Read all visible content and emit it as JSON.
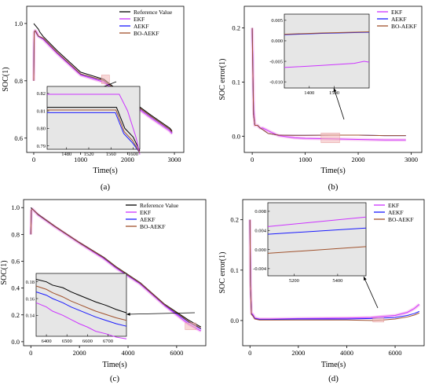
{
  "chart_data": [
    {
      "type": "line",
      "panel_label": "(a)",
      "xlabel": "Time(s)",
      "ylabel": "SOC(1)",
      "xlim": [
        -150,
        3200
      ],
      "ylim": [
        0.55,
        1.06
      ],
      "xticks": [
        0,
        1000,
        2000,
        3000
      ],
      "yticks": [
        0.6,
        0.8,
        1.0
      ],
      "ytick_labels": [
        "0.6",
        "0.8",
        "1.0"
      ],
      "legend_position": "top-right",
      "series": [
        {
          "name": "Reference Value",
          "color": "#000000",
          "x": [
            0,
            50,
            100,
            130,
            200,
            500,
            1000,
            1500,
            2000,
            2500,
            2900,
            2950
          ],
          "y": [
            1.0,
            0.99,
            0.98,
            0.97,
            0.955,
            0.905,
            0.83,
            0.805,
            0.74,
            0.68,
            0.635,
            0.625
          ]
        },
        {
          "name": "EKF",
          "color": "#cc33ff",
          "x": [
            0,
            10,
            30,
            60,
            100,
            200,
            500,
            1000,
            1500,
            2000,
            2500,
            2900,
            2950
          ],
          "y": [
            0.8,
            0.97,
            0.975,
            0.97,
            0.955,
            0.945,
            0.895,
            0.82,
            0.795,
            0.73,
            0.67,
            0.625,
            0.615
          ]
        },
        {
          "name": "AEKF",
          "color": "#1a1aff",
          "x": [
            0,
            10,
            30,
            60,
            100,
            200,
            500,
            1000,
            1500,
            2000,
            2500,
            2900,
            2950
          ],
          "y": [
            0.8,
            0.97,
            0.975,
            0.965,
            0.955,
            0.948,
            0.898,
            0.823,
            0.8,
            0.735,
            0.675,
            0.63,
            0.62
          ]
        },
        {
          "name": "BO-AEKF",
          "color": "#a0522d",
          "x": [
            0,
            10,
            30,
            60,
            100,
            200,
            500,
            1000,
            1500,
            2000,
            2500,
            2900,
            2950
          ],
          "y": [
            0.8,
            0.97,
            0.975,
            0.966,
            0.956,
            0.949,
            0.899,
            0.824,
            0.801,
            0.736,
            0.676,
            0.631,
            0.621
          ]
        }
      ],
      "inset": {
        "xlim": [
          1445,
          1612
        ],
        "ylim": [
          0.788,
          0.824
        ],
        "xticks": [
          1480,
          1520,
          1560,
          1600
        ],
        "yticks": [
          0.79,
          0.8,
          0.81,
          0.82
        ],
        "ytick_labels": [
          "0.79",
          "0.80",
          "0.81",
          "0.82"
        ],
        "series": [
          {
            "name": "Reference Value",
            "x": [
              1445,
              1570,
              1585,
              1600,
              1612
            ],
            "y": [
              0.812,
              0.812,
              0.8,
              0.795,
              0.787
            ]
          },
          {
            "name": "EKF",
            "x": [
              1445,
              1575,
              1590,
              1605,
              1612
            ],
            "y": [
              0.8195,
              0.8195,
              0.81,
              0.795,
              0.785
            ]
          },
          {
            "name": "AEKF",
            "x": [
              1445,
              1568,
              1583,
              1598,
              1612
            ],
            "y": [
              0.809,
              0.809,
              0.797,
              0.792,
              0.786
            ]
          },
          {
            "name": "BO-AEKF",
            "x": [
              1445,
              1569,
              1584,
              1599,
              1612
            ],
            "y": [
              0.8105,
              0.8105,
              0.798,
              0.793,
              0.786
            ]
          }
        ]
      }
    },
    {
      "type": "line",
      "panel_label": "(b)",
      "xlabel": "Time(s)",
      "ylabel": "SOC error(1)",
      "xlim": [
        -150,
        3200
      ],
      "ylim": [
        -0.03,
        0.24
      ],
      "xticks": [
        0,
        1000,
        2000,
        3000
      ],
      "yticks": [
        0.0,
        0.1,
        0.2
      ],
      "ytick_labels": [
        "0.0",
        "0.1",
        "0.2"
      ],
      "legend_position": "top-right",
      "series": [
        {
          "name": "EKF",
          "color": "#cc33ff",
          "x": [
            0,
            10,
            25,
            50,
            100,
            150,
            200,
            300,
            500,
            800,
            1000,
            1500,
            2000,
            2500,
            2900
          ],
          "y": [
            0.2,
            0.15,
            0.05,
            0.02,
            0.02,
            0.015,
            0.015,
            0.01,
            0.001,
            -0.003,
            -0.004,
            -0.005,
            -0.006,
            -0.007,
            -0.007
          ]
        },
        {
          "name": "AEKF",
          "color": "#1a1aff",
          "x": [
            0,
            10,
            25,
            50,
            100,
            150,
            200,
            300,
            500,
            800,
            1000,
            1500,
            2000,
            2500,
            2900
          ],
          "y": [
            0.2,
            0.13,
            0.04,
            0.02,
            0.02,
            0.015,
            0.012,
            0.005,
            0.002,
            0.0015,
            0.0015,
            0.002,
            0.002,
            0.001,
            0.001
          ]
        },
        {
          "name": "BO-AEKF",
          "color": "#a0522d",
          "x": [
            0,
            10,
            25,
            50,
            100,
            150,
            200,
            300,
            500,
            800,
            1000,
            1500,
            2000,
            2500,
            2900
          ],
          "y": [
            0.2,
            0.13,
            0.04,
            0.02,
            0.02,
            0.015,
            0.012,
            0.005,
            0.002,
            0.0015,
            0.0015,
            0.002,
            0.002,
            0.001,
            0.001
          ]
        }
      ],
      "inset": {
        "xlim": [
          1300,
          1640
        ],
        "ylim": [
          -0.0115,
          0.0065
        ],
        "xticks": [
          1400,
          1500
        ],
        "yticks": [
          -0.01,
          -0.005,
          0.0,
          0.005
        ],
        "ytick_labels": [
          "-0.010",
          "-0.005",
          "0.000",
          "0.005"
        ],
        "series": [
          {
            "name": "EKF",
            "x": [
              1300,
              1450,
              1580,
              1620,
              1640
            ],
            "y": [
              -0.0065,
              -0.006,
              -0.0055,
              -0.005,
              -0.0052
            ]
          },
          {
            "name": "AEKF",
            "x": [
              1300,
              1450,
              1580,
              1640
            ],
            "y": [
              0.0015,
              0.0018,
              0.002,
              0.0021
            ]
          },
          {
            "name": "BO-AEKF",
            "x": [
              1300,
              1450,
              1580,
              1640
            ],
            "y": [
              0.0016,
              0.0019,
              0.0021,
              0.0022
            ]
          }
        ]
      }
    },
    {
      "type": "line",
      "panel_label": "(c)",
      "xlabel": "Time(s)",
      "ylabel": "SOC(1)",
      "xlim": [
        -300,
        7200
      ],
      "ylim": [
        -0.03,
        1.06
      ],
      "xticks": [
        0,
        2000,
        4000,
        6000
      ],
      "yticks": [
        0.0,
        0.2,
        0.4,
        0.6,
        0.8,
        1.0
      ],
      "ytick_labels": [
        "0.0",
        "0.2",
        "0.4",
        "0.6",
        "0.8",
        "1.0"
      ],
      "legend_position": "top-right",
      "series": [
        {
          "name": "Reference Value",
          "color": "#000000",
          "x": [
            0,
            60,
            300,
            1000,
            2000,
            3000,
            3500,
            4000,
            4500,
            5000,
            5500,
            6000,
            6500,
            7000
          ],
          "y": [
            1.0,
            0.99,
            0.95,
            0.86,
            0.74,
            0.63,
            0.56,
            0.5,
            0.44,
            0.36,
            0.28,
            0.22,
            0.16,
            0.11
          ]
        },
        {
          "name": "EKF",
          "color": "#cc33ff",
          "x": [
            0,
            20,
            60,
            300,
            1000,
            2000,
            3000,
            3500,
            4000,
            4500,
            5000,
            5500,
            6000,
            6500,
            7000
          ],
          "y": [
            0.8,
            0.98,
            0.99,
            0.945,
            0.855,
            0.735,
            0.62,
            0.55,
            0.49,
            0.43,
            0.35,
            0.27,
            0.2,
            0.13,
            0.08
          ]
        },
        {
          "name": "AEKF",
          "color": "#1a1aff",
          "x": [
            0,
            20,
            60,
            300,
            1000,
            2000,
            3000,
            3500,
            4000,
            4500,
            5000,
            5500,
            6000,
            6500,
            7000
          ],
          "y": [
            0.8,
            0.98,
            0.99,
            0.947,
            0.857,
            0.737,
            0.625,
            0.555,
            0.495,
            0.435,
            0.355,
            0.275,
            0.21,
            0.145,
            0.095
          ]
        },
        {
          "name": "BO-AEKF",
          "color": "#a0522d",
          "x": [
            0,
            20,
            60,
            300,
            1000,
            2000,
            3000,
            3500,
            4000,
            4500,
            5000,
            5500,
            6000,
            6500,
            7000
          ],
          "y": [
            0.8,
            0.98,
            0.99,
            0.948,
            0.858,
            0.738,
            0.627,
            0.557,
            0.497,
            0.437,
            0.357,
            0.277,
            0.215,
            0.15,
            0.1
          ]
        }
      ],
      "inset": {
        "xlim": [
          6350,
          6790
        ],
        "ylim": [
          0.115,
          0.19
        ],
        "xticks": [
          6400,
          6500,
          6600,
          6700
        ],
        "yticks": [
          0.14,
          0.16,
          0.18
        ],
        "ytick_labels": [
          "0.14",
          "0.16",
          "0.18"
        ],
        "series": [
          {
            "name": "Reference Value",
            "x": [
              6350,
              6400,
              6430,
              6480,
              6520,
              6560,
              6600,
              6640,
              6690,
              6740,
              6790
            ],
            "y": [
              0.183,
              0.18,
              0.176,
              0.173,
              0.168,
              0.164,
              0.16,
              0.156,
              0.152,
              0.147,
              0.143
            ]
          },
          {
            "name": "EKF",
            "x": [
              6350,
              6400,
              6430,
              6480,
              6520,
              6560,
              6600,
              6640,
              6690,
              6740,
              6790
            ],
            "y": [
              0.155,
              0.15,
              0.145,
              0.14,
              0.135,
              0.13,
              0.126,
              0.121,
              0.118,
              0.114,
              0.112
            ]
          },
          {
            "name": "AEKF",
            "x": [
              6350,
              6400,
              6430,
              6480,
              6520,
              6560,
              6600,
              6640,
              6690,
              6740,
              6790
            ],
            "y": [
              0.168,
              0.164,
              0.16,
              0.155,
              0.15,
              0.146,
              0.142,
              0.138,
              0.134,
              0.13,
              0.127
            ]
          },
          {
            "name": "BO-AEKF",
            "x": [
              6350,
              6400,
              6430,
              6480,
              6520,
              6560,
              6600,
              6640,
              6690,
              6740,
              6790
            ],
            "y": [
              0.175,
              0.171,
              0.167,
              0.162,
              0.157,
              0.153,
              0.149,
              0.145,
              0.141,
              0.137,
              0.134
            ]
          }
        ]
      }
    },
    {
      "type": "line",
      "panel_label": "(d)",
      "xlabel": "Time(s)",
      "ylabel": "SOC error(1)",
      "xlim": [
        -300,
        7200
      ],
      "ylim": [
        -0.05,
        0.24
      ],
      "xticks": [
        0,
        2000,
        4000,
        6000
      ],
      "yticks": [
        0.0,
        0.1,
        0.2
      ],
      "ytick_labels": [
        "0.0",
        "0.1",
        "0.2"
      ],
      "legend_position": "top-right",
      "series": [
        {
          "name": "EKF",
          "color": "#cc33ff",
          "x": [
            0,
            20,
            60,
            120,
            200,
            400,
            800,
            2000,
            4000,
            5000,
            5500,
            6000,
            6500,
            6800,
            7000
          ],
          "y": [
            0.2,
            0.08,
            0.015,
            0.012,
            0.005,
            0.003,
            0.003,
            0.004,
            0.005,
            0.006,
            0.008,
            0.01,
            0.016,
            0.024,
            0.032
          ]
        },
        {
          "name": "AEKF",
          "color": "#1a1aff",
          "x": [
            0,
            20,
            60,
            120,
            200,
            400,
            800,
            2000,
            4000,
            5000,
            5500,
            6000,
            6500,
            6800,
            7000
          ],
          "y": [
            0.2,
            0.07,
            0.013,
            0.01,
            0.004,
            0.002,
            0.002,
            0.003,
            0.003,
            0.004,
            0.005,
            0.006,
            0.01,
            0.014,
            0.018
          ]
        },
        {
          "name": "BO-AEKF",
          "color": "#a0522d",
          "x": [
            0,
            20,
            60,
            120,
            200,
            400,
            800,
            2000,
            4000,
            5000,
            5500,
            6000,
            6500,
            6800,
            7000
          ],
          "y": [
            0.2,
            0.07,
            0.012,
            0.009,
            0.003,
            0.001,
            0.001,
            0.001,
            0.001,
            0.0,
            0.001,
            0.003,
            0.007,
            0.011,
            0.015
          ]
        }
      ],
      "inset": {
        "xlim": [
          5080,
          5530
        ],
        "ylim": [
          -0.0055,
          0.0098
        ],
        "xticks": [
          5200,
          5400
        ],
        "yticks": [
          -0.004,
          0.0,
          0.004,
          0.008
        ],
        "ytick_labels": [
          "-0.004",
          "0.000",
          "0.004",
          "0.008"
        ],
        "series": [
          {
            "name": "EKF",
            "x": [
              5080,
              5530
            ],
            "y": [
              0.0048,
              0.0068
            ]
          },
          {
            "name": "AEKF",
            "x": [
              5080,
              5530
            ],
            "y": [
              0.0032,
              0.0045
            ]
          },
          {
            "name": "BO-AEKF",
            "x": [
              5080,
              5530
            ],
            "y": [
              -0.0008,
              0.0006
            ]
          }
        ]
      }
    }
  ]
}
